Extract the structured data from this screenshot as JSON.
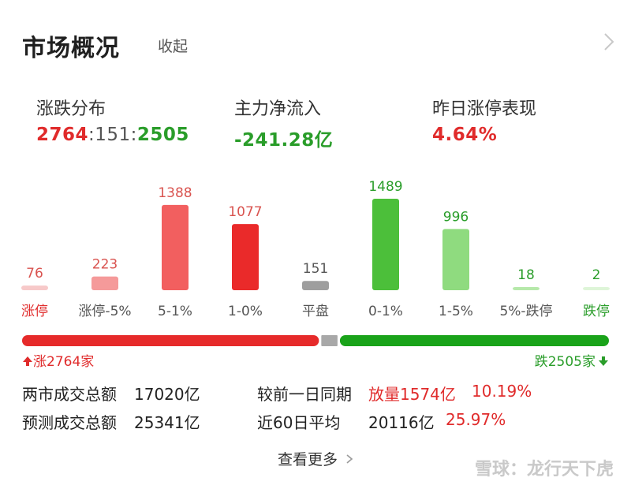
{
  "header": {
    "title": "市场概况",
    "collapse_label": "收起",
    "chevron_icon": "chevron-right-icon"
  },
  "stats": [
    {
      "label": "涨跌分布",
      "value_up": "2764",
      "sep1": ":",
      "value_flat": "151",
      "sep2": ":",
      "value_down": "2505"
    },
    {
      "label": "主力净流入",
      "value": "-241.28亿"
    },
    {
      "label": "昨日涨停表现",
      "value": "4.64%"
    }
  ],
  "chart_data": {
    "type": "bar",
    "categories": [
      "涨停",
      "涨停-5%",
      "5-1%",
      "1-0%",
      "平盘",
      "0-1%",
      "1-5%",
      "5%-跌停",
      "跌停"
    ],
    "values": [
      76,
      223,
      1388,
      1077,
      151,
      1489,
      996,
      18,
      2
    ],
    "value_labels": [
      "76",
      "223",
      "1388",
      "1077",
      "151",
      "1489",
      "996",
      "18",
      "2"
    ],
    "colors": [
      "#f7c9c9",
      "#f59a9a",
      "#f25f5f",
      "#ea2a2a",
      "#9e9e9e",
      "#4cbf3a",
      "#8fdb7f",
      "#b6e9aa",
      "#def5d8"
    ],
    "label_colors": [
      "#e02b2b",
      "#555555",
      "#555555",
      "#555555",
      "#555555",
      "#555555",
      "#555555",
      "#555555",
      "#2a9d2a"
    ],
    "value_colors": [
      "#d9534f",
      "#d9534f",
      "#d9534f",
      "#d9534f",
      "#555555",
      "#2a9d2a",
      "#2a9d2a",
      "#2a9d2a",
      "#2a9d2a"
    ],
    "xlabel": "",
    "ylabel": "",
    "ylim": [
      0,
      1489
    ]
  },
  "breadth": {
    "up_count": 2764,
    "flat_count": 151,
    "down_count": 2505,
    "up_label": "涨2764家",
    "down_label": "跌2505家",
    "up_color": "#e62a2a",
    "flat_color": "#a8a8a8",
    "down_color": "#1aa31a"
  },
  "summary": {
    "row1": {
      "label": "两市成交总额",
      "value": "17020亿",
      "compare_label": "较前一日同期",
      "change": "放量1574亿",
      "percent": "10.19%"
    },
    "row2": {
      "label": "预测成交总额",
      "value": "25341亿",
      "compare_label": "近60日平均",
      "change": "20116亿",
      "percent": "25.97%"
    }
  },
  "footer": {
    "more_label": "查看更多",
    "watermark": "雪球：龙行天下虎"
  }
}
